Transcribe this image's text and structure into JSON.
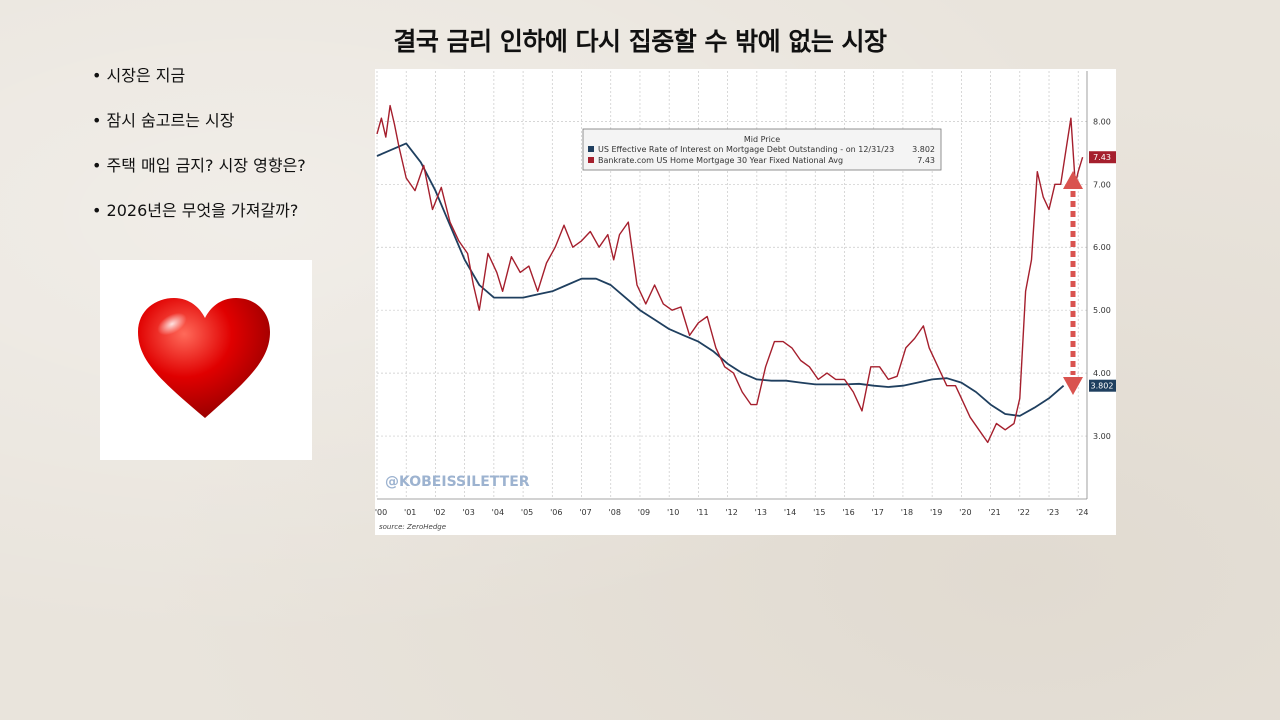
{
  "slide": {
    "title": "결국 금리 인하에 다시 집중할 수 밖에 없는 시장",
    "bullets": [
      "시장은 지금",
      "잠시 숨고르는 시장",
      "주택 매입 금지? 시장 영향은?",
      "2026년은 무엇을 가져갈까?"
    ],
    "heart_icon": "heart-icon"
  },
  "chart_data": {
    "type": "line",
    "legend_title": "Mid Price",
    "x_tick_labels": [
      "'00",
      "'01",
      "'02",
      "'03",
      "'04",
      "'05",
      "'06",
      "'07",
      "'08",
      "'09",
      "'10",
      "'11",
      "'12",
      "'13",
      "'14",
      "'15",
      "'16",
      "'17",
      "'18",
      "'19",
      "'20",
      "'21",
      "'22",
      "'23",
      "'24"
    ],
    "xlim": [
      2000,
      2024.3
    ],
    "ylim": [
      2.0,
      8.8
    ],
    "y_ticks": [
      "3.00",
      "4.00",
      "5.00",
      "6.00",
      "7.00",
      "8.00"
    ],
    "grid": true,
    "legend_position": "top-center",
    "watermark": "@KOBEISSILETTER",
    "source": "source: ZeroHedge",
    "series": [
      {
        "name": "US Effective Rate of Interest on Mortgage Debt Outstanding - on 12/31/23",
        "legend_value": "3.802",
        "last_label": "3.802",
        "color": "#1f3f5f",
        "x": [
          2000,
          2000.5,
          2001,
          2001.5,
          2002,
          2002.5,
          2003,
          2003.5,
          2004,
          2004.5,
          2005,
          2005.5,
          2006,
          2006.5,
          2007,
          2007.5,
          2008,
          2008.5,
          2009,
          2009.5,
          2010,
          2010.5,
          2011,
          2011.5,
          2012,
          2012.5,
          2013,
          2013.5,
          2014,
          2014.5,
          2015,
          2015.5,
          2016,
          2016.5,
          2017,
          2017.5,
          2018,
          2018.5,
          2019,
          2019.5,
          2020,
          2020.5,
          2021,
          2021.5,
          2022,
          2022.5,
          2023,
          2023.5
        ],
        "y": [
          7.45,
          7.55,
          7.65,
          7.35,
          6.9,
          6.35,
          5.8,
          5.4,
          5.2,
          5.2,
          5.2,
          5.25,
          5.3,
          5.4,
          5.5,
          5.5,
          5.4,
          5.2,
          5.0,
          4.85,
          4.7,
          4.6,
          4.5,
          4.35,
          4.15,
          4.0,
          3.9,
          3.88,
          3.88,
          3.85,
          3.82,
          3.82,
          3.82,
          3.83,
          3.8,
          3.78,
          3.8,
          3.85,
          3.9,
          3.92,
          3.85,
          3.7,
          3.5,
          3.35,
          3.32,
          3.45,
          3.6,
          3.8
        ]
      },
      {
        "name": "Bankrate.com US Home Mortgage 30 Year Fixed National Avg",
        "legend_value": "7.43",
        "last_label": "7.43",
        "color": "#a51f2d",
        "x": [
          2000,
          2000.15,
          2000.3,
          2000.45,
          2000.6,
          2000.75,
          2001,
          2001.3,
          2001.6,
          2001.9,
          2002.2,
          2002.5,
          2002.8,
          2003.1,
          2003.3,
          2003.5,
          2003.8,
          2004.1,
          2004.3,
          2004.6,
          2004.9,
          2005.2,
          2005.5,
          2005.8,
          2006.1,
          2006.4,
          2006.7,
          2007,
          2007.3,
          2007.6,
          2007.9,
          2008.1,
          2008.3,
          2008.6,
          2008.9,
          2009.2,
          2009.5,
          2009.8,
          2010.1,
          2010.4,
          2010.7,
          2011.0,
          2011.3,
          2011.6,
          2011.9,
          2012.2,
          2012.5,
          2012.8,
          2013.0,
          2013.3,
          2013.6,
          2013.9,
          2014.2,
          2014.5,
          2014.8,
          2015.1,
          2015.4,
          2015.7,
          2016.0,
          2016.3,
          2016.6,
          2016.9,
          2017.2,
          2017.5,
          2017.8,
          2018.1,
          2018.4,
          2018.7,
          2018.9,
          2019.2,
          2019.5,
          2019.8,
          2020.0,
          2020.3,
          2020.6,
          2020.9,
          2021.2,
          2021.5,
          2021.8,
          2022.0,
          2022.2,
          2022.4,
          2022.6,
          2022.8,
          2023.0,
          2023.2,
          2023.4,
          2023.6,
          2023.75,
          2023.9,
          2024.0,
          2024.15
        ],
        "y": [
          7.8,
          8.05,
          7.75,
          8.25,
          7.95,
          7.6,
          7.1,
          6.9,
          7.3,
          6.6,
          6.95,
          6.4,
          6.1,
          5.9,
          5.4,
          5.0,
          5.9,
          5.6,
          5.3,
          5.85,
          5.6,
          5.7,
          5.3,
          5.75,
          6.0,
          6.35,
          6.0,
          6.1,
          6.25,
          6.0,
          6.2,
          5.8,
          6.2,
          6.4,
          5.4,
          5.1,
          5.4,
          5.1,
          5.0,
          5.05,
          4.6,
          4.8,
          4.9,
          4.4,
          4.1,
          4.0,
          3.7,
          3.5,
          3.5,
          4.1,
          4.5,
          4.5,
          4.4,
          4.2,
          4.1,
          3.9,
          4.0,
          3.9,
          3.9,
          3.7,
          3.4,
          4.1,
          4.1,
          3.9,
          3.95,
          4.4,
          4.55,
          4.75,
          4.4,
          4.1,
          3.8,
          3.8,
          3.6,
          3.3,
          3.1,
          2.9,
          3.2,
          3.1,
          3.2,
          3.6,
          5.3,
          5.8,
          7.2,
          6.8,
          6.6,
          7.0,
          7.0,
          7.6,
          8.05,
          7.0,
          7.2,
          7.43
        ]
      }
    ]
  }
}
